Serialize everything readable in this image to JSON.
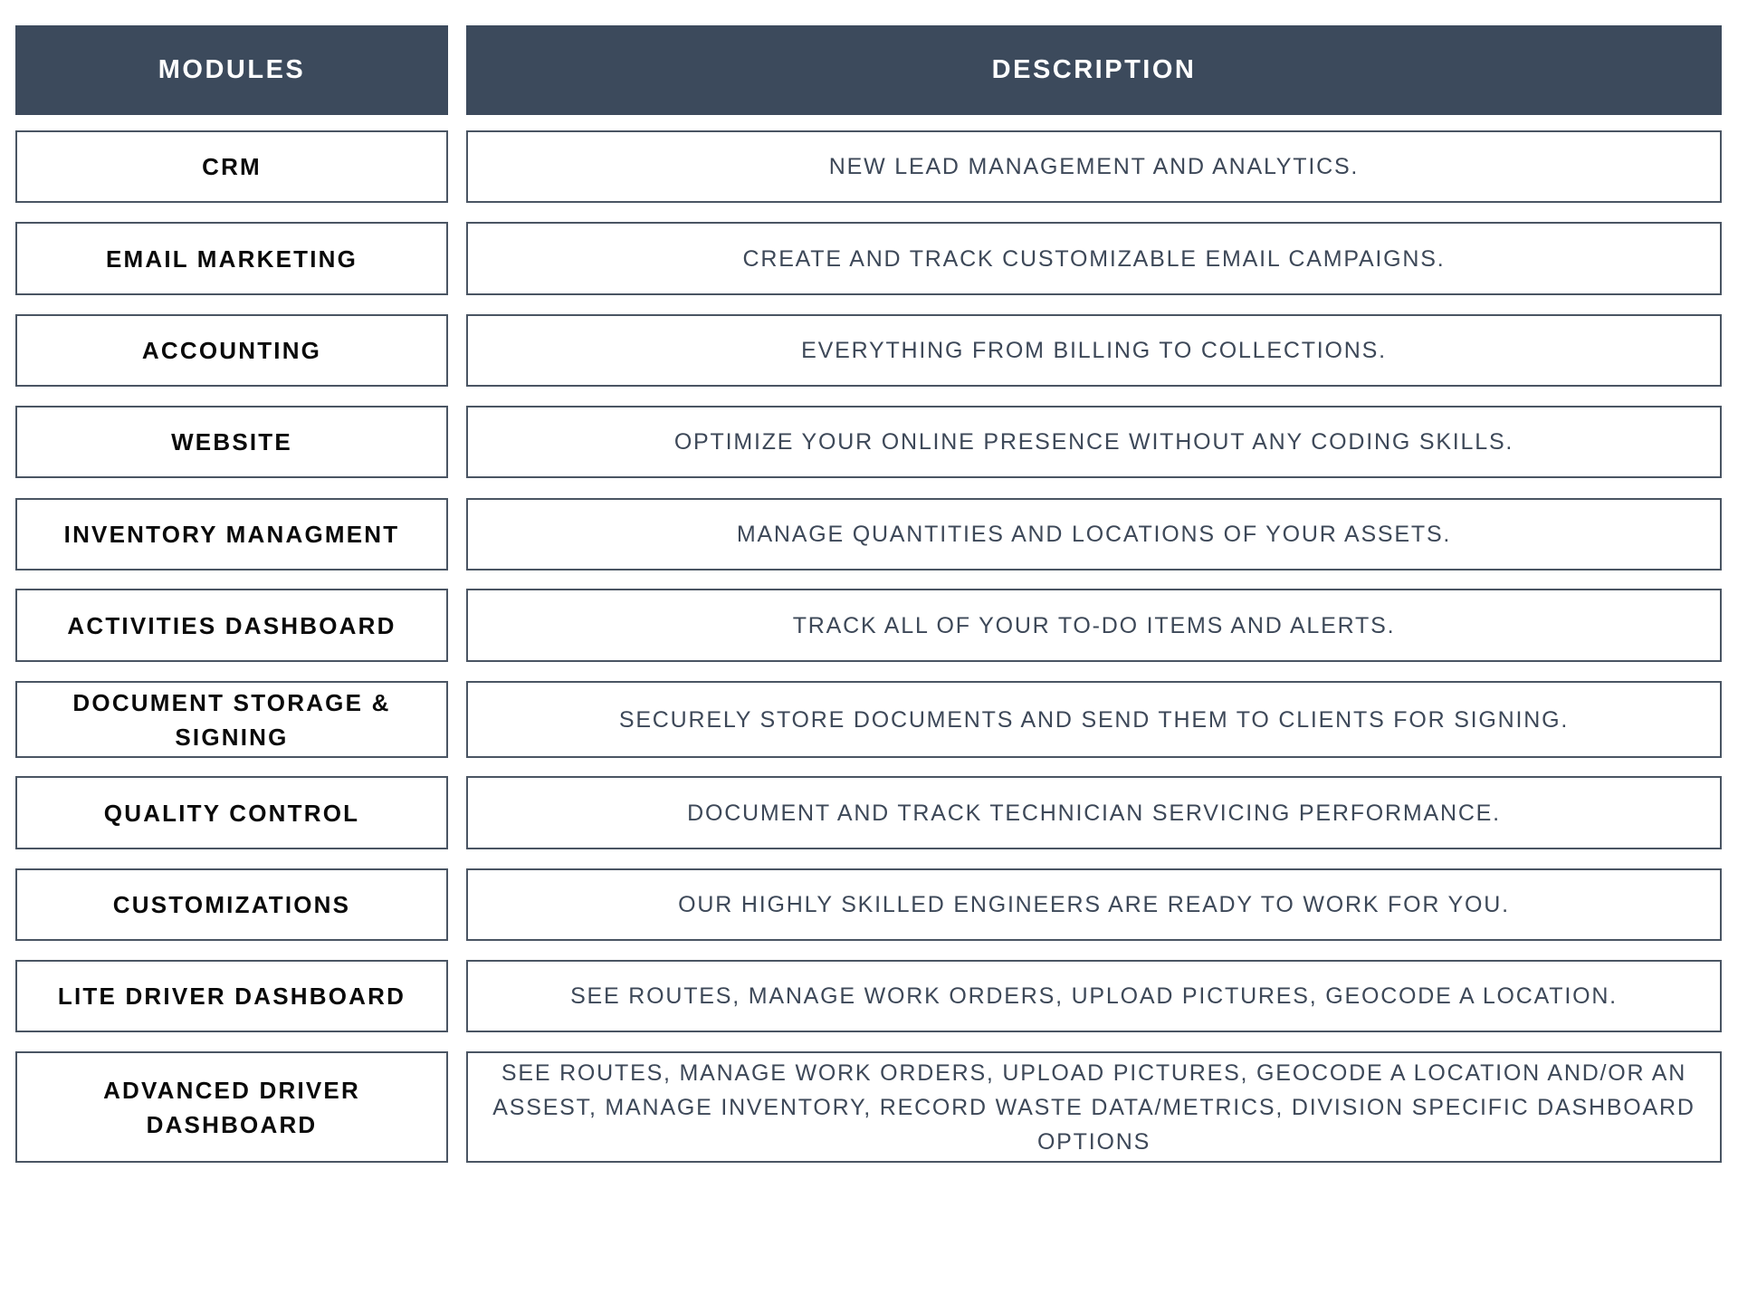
{
  "header": {
    "modules": "MODULES",
    "description": "DESCRIPTION"
  },
  "colors": {
    "header_bg": "#3c4a5c",
    "border": "#4a5563"
  },
  "rows": [
    {
      "module": "CRM",
      "description": "NEW LEAD MANAGEMENT AND ANALYTICS."
    },
    {
      "module": "EMAIL MARKETING",
      "description": "CREATE AND TRACK CUSTOMIZABLE EMAIL CAMPAIGNS."
    },
    {
      "module": "ACCOUNTING",
      "description": "EVERYTHING FROM BILLING TO COLLECTIONS."
    },
    {
      "module": "WEBSITE",
      "description": "OPTIMIZE YOUR ONLINE PRESENCE WITHOUT ANY CODING SKILLS."
    },
    {
      "module": "INVENTORY MANAGMENT",
      "description": "MANAGE QUANTITIES AND LOCATIONS OF YOUR ASSETS."
    },
    {
      "module": "ACTIVITIES DASHBOARD",
      "description": "TRACK ALL OF YOUR TO-DO ITEMS AND ALERTS."
    },
    {
      "module": "DOCUMENT STORAGE & SIGNING",
      "description": "SECURELY STORE DOCUMENTS AND SEND THEM TO CLIENTS FOR SIGNING."
    },
    {
      "module": "QUALITY CONTROL",
      "description": "DOCUMENT AND TRACK TECHNICIAN SERVICING PERFORMANCE."
    },
    {
      "module": "CUSTOMIZATIONS",
      "description": "OUR HIGHLY SKILLED ENGINEERS ARE READY TO WORK FOR YOU."
    },
    {
      "module": "LITE DRIVER DASHBOARD",
      "description": "SEE ROUTES, MANAGE WORK ORDERS, UPLOAD PICTURES, GEOCODE A LOCATION."
    },
    {
      "module": "ADVANCED DRIVER DASHBOARD",
      "description": "SEE ROUTES, MANAGE WORK ORDERS, UPLOAD PICTURES, GEOCODE A LOCATION AND/OR AN ASSEST, MANAGE INVENTORY, RECORD WASTE DATA/METRICS, DIVISION SPECIFIC DASHBOARD OPTIONS"
    }
  ]
}
